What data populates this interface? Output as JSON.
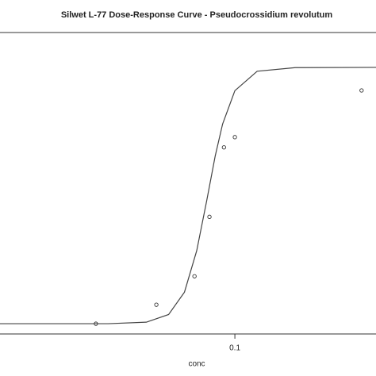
{
  "chart_data": {
    "type": "scatter",
    "title": "Silwet L-77 Dose-Response Curve - Pseudocrossidium revolutum",
    "x_label": "conc",
    "x_log": true,
    "x": [
      0.008,
      0.024,
      0.048,
      0.063,
      0.082,
      0.1,
      1.0
    ],
    "values": [
      0,
      7.4,
      18.5,
      41.7,
      68.8,
      72.8,
      91.0
    ],
    "color": "#333333",
    "curve": {
      "name": "fit",
      "color": "#444444",
      "x": [
        0.0014,
        0.01,
        0.02,
        0.03,
        0.04,
        0.05,
        0.06,
        0.07,
        0.08,
        0.1,
        0.15,
        0.3,
        1.3
      ],
      "values": [
        0,
        0,
        0.6,
        3.6,
        12.3,
        28.5,
        48.1,
        65.5,
        77.9,
        90.9,
        98.5,
        99.9,
        100
      ]
    },
    "xlim": [
      0.0014,
      1.3
    ],
    "ylim": [
      -4,
      113.6
    ],
    "xticks": [
      {
        "value": 0.1,
        "label": "0.1"
      }
    ]
  }
}
